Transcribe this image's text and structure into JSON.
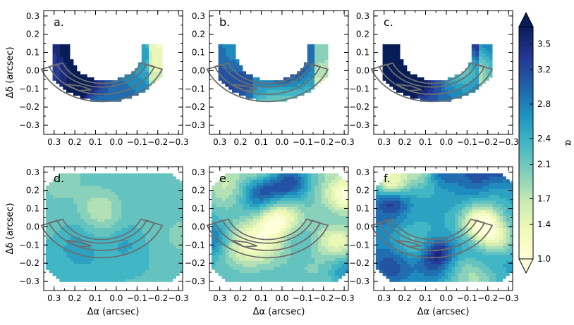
{
  "chart_data": {
    "type": "heatmap",
    "panels": [
      {
        "id": "a",
        "label": "a.",
        "row": 0,
        "col": 0,
        "coverage": "arc"
      },
      {
        "id": "b",
        "label": "b.",
        "row": 0,
        "col": 1,
        "coverage": "arc"
      },
      {
        "id": "c",
        "label": "c.",
        "row": 0,
        "col": 2,
        "coverage": "arc"
      },
      {
        "id": "d",
        "label": "d.",
        "row": 1,
        "col": 0,
        "coverage": "full"
      },
      {
        "id": "e",
        "label": "e.",
        "row": 1,
        "col": 1,
        "coverage": "full"
      },
      {
        "id": "f",
        "label": "f.",
        "row": 1,
        "col": 2,
        "coverage": "full"
      }
    ],
    "xlabel": "Δα (arcsec)",
    "ylabel": "Δδ (arcsec)",
    "xlim": [
      0.35,
      -0.32
    ],
    "ylim": [
      -0.35,
      0.33
    ],
    "x_ticks": [
      0.3,
      0.2,
      0.1,
      0.0,
      -0.1,
      -0.2,
      -0.3
    ],
    "x_tick_labels": [
      "0.3",
      "0.2",
      "0.1",
      "0.0",
      "−0.1",
      "−0.2",
      "−0.3"
    ],
    "y_ticks": [
      0.3,
      0.2,
      0.1,
      0.0,
      -0.1,
      -0.2,
      -0.3
    ],
    "y_tick_labels": [
      "0.3",
      "0.2",
      "0.1",
      "0.0",
      "−0.1",
      "−0.2",
      "−0.3"
    ],
    "contour_color": "#6e6e6e",
    "colorbar": {
      "label": "α",
      "range": [
        1.0,
        3.7
      ],
      "ticks": [
        1.0,
        1.4,
        1.7,
        2.1,
        2.4,
        2.8,
        3.2,
        3.5
      ],
      "tick_labels": [
        "1.0",
        "1.4",
        "1.7",
        "2.1",
        "2.4",
        "2.8",
        "3.2",
        "3.5"
      ],
      "colors": [
        "#ffffd9",
        "#f0f9b6",
        "#c7e9b4",
        "#7fcdbb",
        "#41b6c4",
        "#1d91c0",
        "#225ea8",
        "#253494",
        "#081d58"
      ]
    },
    "grid": false,
    "legend": "none"
  }
}
